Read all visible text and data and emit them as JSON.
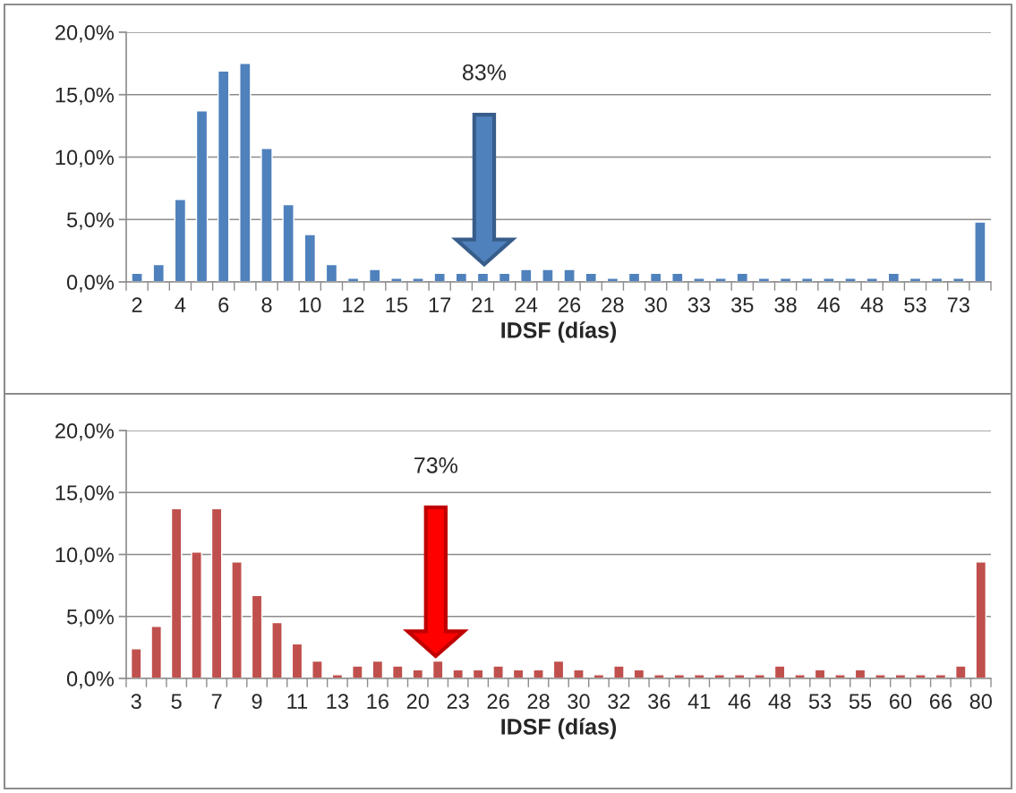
{
  "chart_data": [
    {
      "type": "bar",
      "xlabel": "IDSF (días)",
      "categories": [
        "2",
        null,
        "4",
        null,
        "6",
        null,
        "8",
        null,
        "10",
        null,
        "12",
        null,
        "15",
        null,
        "17",
        null,
        "21",
        null,
        "24",
        null,
        "26",
        null,
        "28",
        null,
        "30",
        null,
        "33",
        null,
        "35",
        null,
        "38",
        null,
        "46",
        null,
        "48",
        null,
        "53",
        null,
        "73",
        null
      ],
      "series": [
        {
          "color": "#4f81bd",
          "values": [
            0.7,
            1.4,
            6.6,
            13.7,
            16.9,
            17.5,
            10.7,
            6.2,
            3.8,
            1.4,
            0.3,
            1.0,
            0.3,
            0.3,
            0.7,
            0.7,
            0.7,
            0.7,
            1.0,
            1.0,
            1.0,
            0.7,
            0.3,
            0.7,
            0.7,
            0.7,
            0.3,
            0.3,
            0.7,
            0.3,
            0.3,
            0.3,
            0.3,
            0.3,
            0.3,
            0.7,
            0.3,
            0.3,
            0.3,
            4.8
          ]
        }
      ],
      "ylim": [
        0,
        20
      ],
      "yticks": [
        {
          "value": 0,
          "label": "0,0%"
        },
        {
          "value": 5,
          "label": "5,0%"
        },
        {
          "value": 10,
          "label": "10,0%"
        },
        {
          "value": 15,
          "label": "15,0%"
        },
        {
          "value": 20,
          "label": "20,0%"
        }
      ],
      "grid": "y",
      "annotations": [
        "83%"
      ]
    },
    {
      "type": "bar",
      "xlabel": "IDSF (días)",
      "categories": [
        "3",
        null,
        "5",
        null,
        "7",
        null,
        "9",
        null,
        "11",
        null,
        "13",
        null,
        "16",
        null,
        "20",
        null,
        "23",
        null,
        "26",
        null,
        "28",
        null,
        "30",
        null,
        "32",
        null,
        "36",
        null,
        "41",
        null,
        "46",
        null,
        "48",
        null,
        "53",
        null,
        "55",
        null,
        "60",
        null,
        "66",
        null,
        "80"
      ],
      "series": [
        {
          "color": "#c0504d",
          "values": [
            2.4,
            4.2,
            13.7,
            10.2,
            13.7,
            9.4,
            6.7,
            4.5,
            2.8,
            1.4,
            0.3,
            1.0,
            1.4,
            1.0,
            0.7,
            1.4,
            0.7,
            0.7,
            1.0,
            0.7,
            0.7,
            1.4,
            0.7,
            0.3,
            1.0,
            0.7,
            0.3,
            0.3,
            0.3,
            0.3,
            0.3,
            0.3,
            1.0,
            0.3,
            0.7,
            0.3,
            0.7,
            0.3,
            0.3,
            0.3,
            0.3,
            1.0,
            9.4
          ]
        }
      ],
      "ylim": [
        0,
        20
      ],
      "yticks": [
        {
          "value": 0,
          "label": "0,0%"
        },
        {
          "value": 5,
          "label": "5,0%"
        },
        {
          "value": 10,
          "label": "10,0%"
        },
        {
          "value": 15,
          "label": "15,0%"
        },
        {
          "value": 20,
          "label": "20,0%"
        }
      ],
      "grid": "y",
      "annotations": [
        "73%"
      ]
    }
  ]
}
